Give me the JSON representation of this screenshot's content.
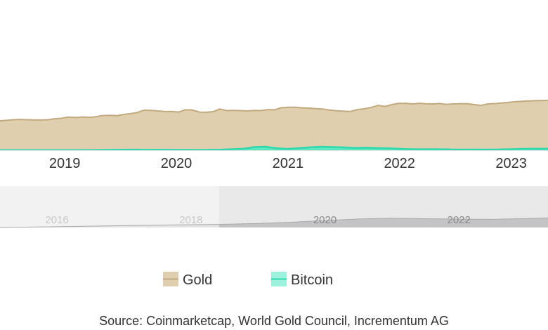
{
  "chart_data": {
    "type": "area",
    "title": "",
    "xlabel": "",
    "ylabel": "",
    "x_tick_labels": [
      "2019",
      "2020",
      "2021",
      "2022",
      "2023"
    ],
    "xlim": [
      2018.42,
      2023.33
    ],
    "ylim": [
      0,
      1
    ],
    "series": [
      {
        "name": "Gold",
        "color": "#dfcfae",
        "line_color": "#c2aa7e",
        "x": [
          2018.42,
          2018.48,
          2018.54,
          2018.6,
          2018.67,
          2018.73,
          2018.79,
          2018.85,
          2018.91,
          2018.97,
          2019.03,
          2019.1,
          2019.16,
          2019.22,
          2019.28,
          2019.34,
          2019.41,
          2019.47,
          2019.53,
          2019.59,
          2019.65,
          2019.71,
          2019.78,
          2019.84,
          2019.9,
          2019.96,
          2020.02,
          2020.08,
          2020.14,
          2020.21,
          2020.27,
          2020.33,
          2020.39,
          2020.45,
          2020.51,
          2020.57,
          2020.64,
          2020.7,
          2020.76,
          2020.82,
          2020.88,
          2020.94,
          2021.0,
          2021.07,
          2021.13,
          2021.19,
          2021.25,
          2021.31,
          2021.37,
          2021.44,
          2021.5,
          2021.56,
          2021.62,
          2021.68,
          2021.75,
          2021.81,
          2021.87,
          2021.93,
          2021.99,
          2022.05,
          2022.12,
          2022.18,
          2022.24,
          2022.3,
          2022.36,
          2022.42,
          2022.48,
          2022.55,
          2022.61,
          2022.67,
          2022.73,
          2022.79,
          2022.86,
          2022.92,
          2022.98,
          2023.04,
          2023.1,
          2023.16,
          2023.23,
          2023.29,
          2023.33
        ],
        "values": [
          0.59,
          0.6,
          0.612,
          0.618,
          0.613,
          0.609,
          0.608,
          0.612,
          0.632,
          0.64,
          0.666,
          0.657,
          0.668,
          0.661,
          0.673,
          0.695,
          0.7,
          0.694,
          0.718,
          0.735,
          0.757,
          0.803,
          0.8,
          0.787,
          0.776,
          0.778,
          0.766,
          0.812,
          0.808,
          0.765,
          0.762,
          0.775,
          0.827,
          0.796,
          0.799,
          0.795,
          0.789,
          0.799,
          0.796,
          0.815,
          0.81,
          0.854,
          0.862,
          0.863,
          0.85,
          0.845,
          0.835,
          0.827,
          0.806,
          0.793,
          0.784,
          0.777,
          0.815,
          0.829,
          0.862,
          0.901,
          0.879,
          0.915,
          0.94,
          0.942,
          0.93,
          0.942,
          0.932,
          0.927,
          0.939,
          0.92,
          0.927,
          0.935,
          0.933,
          0.915,
          0.899,
          0.93,
          0.936,
          0.949,
          0.962,
          0.974,
          0.983,
          0.99,
          0.995,
          0.998,
          1.0
        ]
      },
      {
        "name": "Bitcoin",
        "color": "#4de8c0",
        "line_color": "#2fd9ad",
        "x": [
          2018.42,
          2018.6,
          2018.8,
          2019.0,
          2019.2,
          2019.4,
          2019.6,
          2019.8,
          2020.0,
          2020.2,
          2020.4,
          2020.6,
          2020.7,
          2020.8,
          2020.9,
          2021.0,
          2021.1,
          2021.2,
          2021.3,
          2021.4,
          2021.5,
          2021.6,
          2021.7,
          2021.8,
          2021.9,
          2022.0,
          2022.1,
          2022.2,
          2022.3,
          2022.4,
          2022.5,
          2022.6,
          2022.7,
          2022.8,
          2022.9,
          2023.0,
          2023.1,
          2023.2,
          2023.33
        ],
        "values": [
          0.004,
          0.004,
          0.004,
          0.004,
          0.004,
          0.008,
          0.012,
          0.01,
          0.008,
          0.007,
          0.012,
          0.03,
          0.065,
          0.07,
          0.04,
          0.026,
          0.044,
          0.06,
          0.07,
          0.064,
          0.058,
          0.047,
          0.053,
          0.044,
          0.04,
          0.028,
          0.022,
          0.02,
          0.021,
          0.018,
          0.015,
          0.015,
          0.016,
          0.014,
          0.016,
          0.022,
          0.028,
          0.03,
          0.03
        ]
      }
    ],
    "navigator": {
      "type": "area",
      "tick_labels": [
        "2016",
        "2018",
        "2020",
        "2022"
      ],
      "xlim": [
        2015.15,
        2023.33
      ],
      "selected_range": [
        2018.42,
        2023.33
      ],
      "x": [
        2015.15,
        2016.0,
        2017.0,
        2017.8,
        2018.42,
        2019.0,
        2019.5,
        2020.0,
        2020.5,
        2021.0,
        2021.5,
        2022.0,
        2022.5,
        2023.0,
        2023.33
      ],
      "values": [
        0.0,
        0.05,
        0.12,
        0.17,
        0.2,
        0.26,
        0.34,
        0.45,
        0.55,
        0.6,
        0.57,
        0.54,
        0.53,
        0.58,
        0.62
      ]
    },
    "legend": {
      "position": "bottom",
      "items": [
        {
          "label": "Gold",
          "color": "#dfcfae",
          "line_color": "#c2aa7e"
        },
        {
          "label": "Bitcoin",
          "color": "#9cf2dd",
          "line_color": "#2fd9ad"
        }
      ]
    },
    "source": "Source: Coinmarketcap, World Gold Council, Incrementum AG"
  }
}
